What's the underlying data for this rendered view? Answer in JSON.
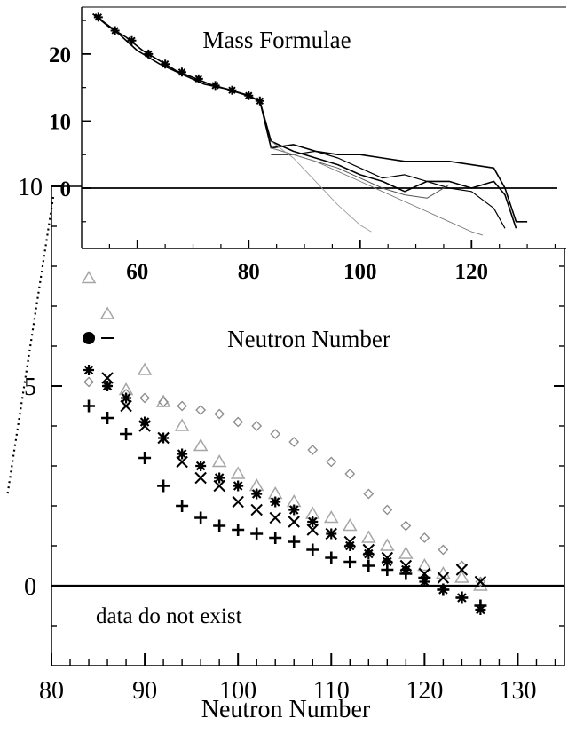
{
  "chart_data": [
    {
      "id": "main",
      "type": "scatter",
      "title": "",
      "xlabel": "Neutron Number",
      "ylabel": "",
      "xlim": [
        80,
        135
      ],
      "ylim": [
        -2,
        10
      ],
      "xticks": [
        80,
        90,
        100,
        110,
        120,
        130
      ],
      "yticks": [
        0,
        5,
        10
      ],
      "zero_line": true,
      "annotations": [
        "data do not exist"
      ],
      "series": [
        {
          "marker": "triangle",
          "color": "#a6a6a6",
          "x": [
            84,
            86,
            88,
            90,
            92,
            94,
            96,
            98,
            100,
            102,
            104,
            106,
            108,
            110,
            112,
            114,
            116,
            118,
            120,
            122,
            124,
            126
          ],
          "y": [
            7.7,
            6.8,
            4.9,
            5.4,
            4.6,
            4.0,
            3.5,
            3.1,
            2.8,
            2.5,
            2.3,
            2.1,
            1.8,
            1.7,
            1.5,
            1.2,
            1.0,
            0.8,
            0.5,
            0.3,
            0.2,
            0.0
          ]
        },
        {
          "marker": "diamond",
          "color": "#8c8c8c",
          "x": [
            84,
            86,
            88,
            90,
            92,
            94,
            96,
            98,
            100,
            102,
            104,
            106,
            108,
            110,
            112,
            114,
            116,
            118,
            120,
            122,
            124,
            126
          ],
          "y": [
            5.1,
            5.0,
            4.8,
            4.7,
            4.6,
            4.5,
            4.4,
            4.3,
            4.1,
            4.0,
            3.8,
            3.6,
            3.4,
            3.1,
            2.8,
            2.3,
            1.9,
            1.5,
            1.2,
            0.9,
            0.5,
            0.1
          ]
        },
        {
          "marker": "x",
          "color": "#000000",
          "x": [
            86,
            88,
            90,
            92,
            94,
            96,
            98,
            100,
            102,
            104,
            106,
            108,
            110,
            112,
            114,
            116,
            118,
            120,
            122,
            124,
            126
          ],
          "y": [
            5.2,
            4.5,
            4.0,
            3.7,
            3.1,
            2.7,
            2.5,
            2.1,
            1.9,
            1.7,
            1.6,
            1.4,
            1.3,
            1.1,
            0.9,
            0.7,
            0.5,
            0.3,
            0.2,
            0.4,
            0.1
          ]
        },
        {
          "marker": "star",
          "color": "#000000",
          "x": [
            84,
            86,
            88,
            90,
            92,
            94,
            96,
            98,
            100,
            102,
            104,
            106,
            108,
            110,
            112,
            114,
            116,
            118,
            120,
            122,
            124,
            126
          ],
          "y": [
            5.4,
            5.0,
            4.7,
            4.1,
            3.7,
            3.3,
            3.0,
            2.7,
            2.5,
            2.3,
            2.1,
            1.9,
            1.6,
            1.3,
            1.0,
            0.8,
            0.6,
            0.4,
            0.1,
            -0.1,
            -0.3,
            -0.6
          ]
        },
        {
          "marker": "plus",
          "color": "#000000",
          "x": [
            84,
            86,
            88,
            90,
            92,
            94,
            96,
            98,
            100,
            102,
            104,
            106,
            108,
            110,
            112,
            114,
            116,
            118,
            120,
            122,
            124,
            126
          ],
          "y": [
            4.5,
            4.2,
            3.8,
            3.2,
            2.5,
            2.0,
            1.7,
            1.5,
            1.4,
            1.3,
            1.2,
            1.1,
            0.9,
            0.7,
            0.6,
            0.5,
            0.4,
            0.3,
            0.2,
            -0.1,
            -0.3,
            -0.5
          ]
        },
        {
          "marker": "dot",
          "color": "#000000",
          "x": [
            84
          ],
          "y": [
            6.2
          ]
        },
        {
          "marker": "dash",
          "color": "#000000",
          "x": [
            86
          ],
          "y": [
            6.2
          ]
        }
      ]
    },
    {
      "id": "inset",
      "type": "line",
      "title": "Mass Formulae",
      "xlabel": "Neutron Number",
      "ylabel": "",
      "xlim": [
        50,
        137
      ],
      "ylim": [
        -9,
        27
      ],
      "xticks": [
        60,
        80,
        100,
        120
      ],
      "yticks": [
        0,
        10,
        20
      ],
      "zero_line": true,
      "series": [
        {
          "color": "#000000",
          "width": 1.6,
          "x": [
            52,
            55,
            58,
            61,
            64,
            67,
            70,
            73,
            76,
            79,
            82,
            84,
            88,
            92,
            96,
            100,
            104,
            108,
            112,
            116,
            120,
            124,
            126,
            128,
            130
          ],
          "y": [
            26,
            24,
            22.5,
            20.5,
            19,
            17.5,
            16.5,
            15.5,
            14.8,
            14,
            13,
            6,
            6.5,
            5.5,
            5,
            5,
            4.5,
            4,
            4,
            4,
            3.5,
            3,
            0,
            -5,
            -5
          ]
        },
        {
          "color": "#000000",
          "width": 1.6,
          "x": [
            52,
            56,
            60,
            64,
            68,
            72,
            76,
            80,
            82,
            84,
            88,
            92,
            96,
            100,
            104,
            108,
            112,
            116,
            120,
            124,
            126,
            128
          ],
          "y": [
            26,
            23.5,
            20.5,
            18.5,
            17,
            15.5,
            14.8,
            13.8,
            13,
            7,
            5.5,
            4.5,
            3.5,
            2,
            1,
            -0.5,
            1,
            1,
            0,
            1,
            -1,
            -6
          ]
        },
        {
          "color": "#000000",
          "width": 1.2,
          "x": [
            84,
            88,
            92,
            96,
            100,
            104,
            108,
            112,
            116,
            120,
            124,
            126
          ],
          "y": [
            5,
            5,
            5.5,
            4.5,
            3,
            1.5,
            2,
            1,
            0,
            -0.5,
            -3,
            -6
          ]
        },
        {
          "color": "#555555",
          "width": 1.0,
          "x": [
            84,
            88,
            92,
            96,
            100,
            104,
            108,
            112,
            116
          ],
          "y": [
            6,
            5,
            4,
            3,
            1.5,
            0,
            -1,
            -1.5,
            0.5
          ]
        },
        {
          "color": "#777777",
          "width": 0.9,
          "x": [
            84,
            88,
            92,
            96,
            100,
            104,
            108,
            112,
            116,
            120,
            122
          ],
          "y": [
            6,
            5,
            4,
            2.5,
            1,
            -0.5,
            -2,
            -3.5,
            -5,
            -6.5,
            -7
          ]
        },
        {
          "color": "#999999",
          "width": 0.9,
          "x": [
            84,
            88,
            92,
            96,
            100,
            102
          ],
          "y": [
            7,
            4.5,
            1,
            -2.5,
            -5.5,
            -6.5
          ]
        }
      ],
      "star_markers": {
        "x": [
          53,
          56,
          59,
          62,
          65,
          68,
          71,
          74,
          77,
          80,
          82
        ],
        "y": [
          25.5,
          23.5,
          22,
          20,
          18.5,
          17.3,
          16.3,
          15.3,
          14.6,
          13.8,
          13
        ]
      }
    }
  ]
}
